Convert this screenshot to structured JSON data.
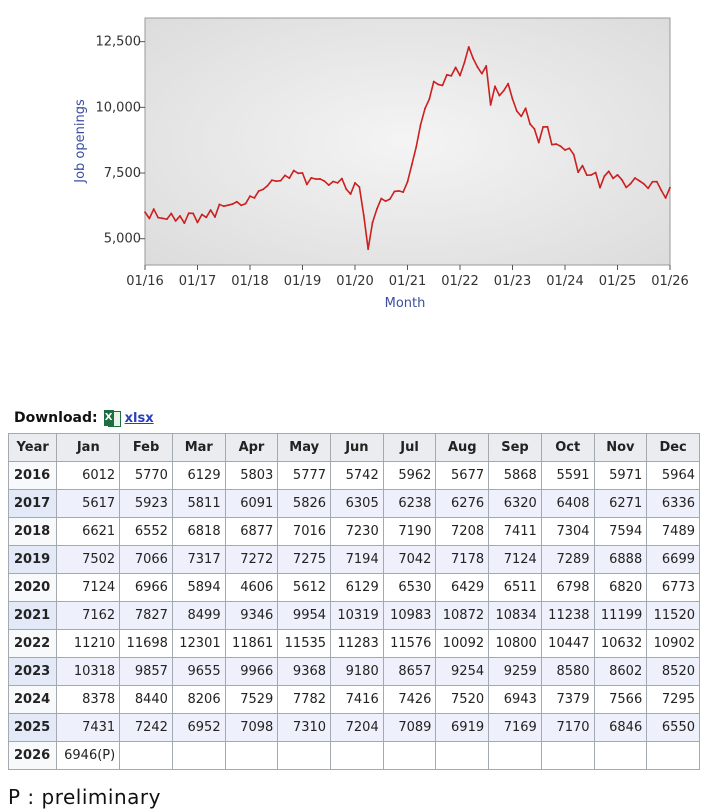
{
  "chart_data": {
    "type": "line",
    "xlabel": "Month",
    "ylabel": "Job openings",
    "ylim": [
      4000,
      13400
    ],
    "y_ticks": [
      "5,000",
      "7,500",
      "10,000",
      "12,500"
    ],
    "y_tick_values": [
      5000,
      7500,
      10000,
      12500
    ],
    "x_ticks": [
      "01/16",
      "01/17",
      "01/18",
      "01/19",
      "01/20",
      "01/21",
      "01/22",
      "01/23",
      "01/24",
      "01/25",
      "01/26"
    ],
    "grid": false,
    "series": [
      {
        "color": "#cc1f1f",
        "start": "2016-01",
        "values": [
          6012,
          5770,
          6129,
          5803,
          5777,
          5742,
          5962,
          5677,
          5868,
          5591,
          5971,
          5964,
          5617,
          5923,
          5811,
          6091,
          5826,
          6305,
          6238,
          6276,
          6320,
          6408,
          6271,
          6336,
          6621,
          6552,
          6818,
          6877,
          7016,
          7230,
          7190,
          7208,
          7411,
          7304,
          7594,
          7489,
          7502,
          7066,
          7317,
          7272,
          7275,
          7194,
          7042,
          7178,
          7124,
          7289,
          6888,
          6699,
          7124,
          6966,
          5894,
          4606,
          5612,
          6129,
          6530,
          6429,
          6511,
          6798,
          6820,
          6773,
          7162,
          7827,
          8499,
          9346,
          9954,
          10319,
          10983,
          10872,
          10834,
          11238,
          11199,
          11520,
          11210,
          11698,
          12301,
          11861,
          11535,
          11283,
          11576,
          10092,
          10800,
          10447,
          10632,
          10902,
          10318,
          9857,
          9655,
          9966,
          9368,
          9180,
          8657,
          9254,
          9259,
          8580,
          8602,
          8520,
          8378,
          8440,
          8206,
          7529,
          7782,
          7416,
          7426,
          7520,
          6943,
          7379,
          7566,
          7295,
          7431,
          7242,
          6952,
          7098,
          7310,
          7204,
          7089,
          6919,
          7169,
          7170,
          6846,
          6550,
          6946
        ]
      }
    ]
  },
  "download": {
    "label": "Download:",
    "icon": "excel-icon",
    "badge": "X",
    "link": "xlsx"
  },
  "table": {
    "headers": [
      "Year",
      "Jan",
      "Feb",
      "Mar",
      "Apr",
      "May",
      "Jun",
      "Jul",
      "Aug",
      "Sep",
      "Oct",
      "Nov",
      "Dec"
    ],
    "rows": [
      [
        "2016",
        "6012",
        "5770",
        "6129",
        "5803",
        "5777",
        "5742",
        "5962",
        "5677",
        "5868",
        "5591",
        "5971",
        "5964"
      ],
      [
        "2017",
        "5617",
        "5923",
        "5811",
        "6091",
        "5826",
        "6305",
        "6238",
        "6276",
        "6320",
        "6408",
        "6271",
        "6336"
      ],
      [
        "2018",
        "6621",
        "6552",
        "6818",
        "6877",
        "7016",
        "7230",
        "7190",
        "7208",
        "7411",
        "7304",
        "7594",
        "7489"
      ],
      [
        "2019",
        "7502",
        "7066",
        "7317",
        "7272",
        "7275",
        "7194",
        "7042",
        "7178",
        "7124",
        "7289",
        "6888",
        "6699"
      ],
      [
        "2020",
        "7124",
        "6966",
        "5894",
        "4606",
        "5612",
        "6129",
        "6530",
        "6429",
        "6511",
        "6798",
        "6820",
        "6773"
      ],
      [
        "2021",
        "7162",
        "7827",
        "8499",
        "9346",
        "9954",
        "10319",
        "10983",
        "10872",
        "10834",
        "11238",
        "11199",
        "11520"
      ],
      [
        "2022",
        "11210",
        "11698",
        "12301",
        "11861",
        "11535",
        "11283",
        "11576",
        "10092",
        "10800",
        "10447",
        "10632",
        "10902"
      ],
      [
        "2023",
        "10318",
        "9857",
        "9655",
        "9966",
        "9368",
        "9180",
        "8657",
        "9254",
        "9259",
        "8580",
        "8602",
        "8520"
      ],
      [
        "2024",
        "8378",
        "8440",
        "8206",
        "7529",
        "7782",
        "7416",
        "7426",
        "7520",
        "6943",
        "7379",
        "7566",
        "7295"
      ],
      [
        "2025",
        "7431",
        "7242",
        "6952",
        "7098",
        "7310",
        "7204",
        "7089",
        "6919",
        "7169",
        "7170",
        "6846",
        "6550"
      ],
      [
        "2026",
        "6946(P)",
        "",
        "",
        "",
        "",
        "",
        "",
        "",
        "",
        "",
        "",
        ""
      ]
    ]
  },
  "footnote": "P : preliminary"
}
